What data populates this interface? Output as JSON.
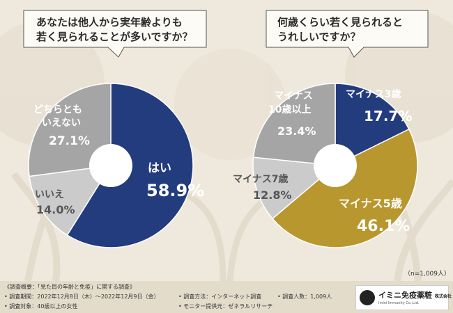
{
  "chart_data": [
    {
      "type": "pie",
      "title": "あなたは他人から実年齢よりも若く見られることが多いですか？",
      "title_lines": [
        "あなたは他人から実年齢よりも",
        "若く見られることが多いですか？"
      ],
      "slices": [
        {
          "label": "はい",
          "value": 58.9,
          "display": "58.9%",
          "color": "#233c7e"
        },
        {
          "label": "いいえ",
          "value": 14.0,
          "display": "14.0%",
          "color": "#cbcbcb"
        },
        {
          "label": "どちらともいえない",
          "value": 27.1,
          "display": "27.1%",
          "color": "#a5a5a5"
        }
      ]
    },
    {
      "type": "pie",
      "title": "何歳くらい若く見られるとうれしいですか？",
      "title_lines": [
        "何歳くらい若く見られると",
        "うれしいですか？"
      ],
      "slices": [
        {
          "label": "マイナス3歳",
          "value": 17.7,
          "display": "17.7%",
          "color": "#233c7e"
        },
        {
          "label": "マイナス5歳",
          "value": 46.1,
          "display": "46.1%",
          "color": "#b8972e"
        },
        {
          "label": "マイナス7歳",
          "value": 12.8,
          "display": "12.8%",
          "color": "#cbcbcb"
        },
        {
          "label": "マイナス10歳以上",
          "value": 23.4,
          "display": "23.4%",
          "color": "#a5a5a5"
        }
      ]
    }
  ],
  "labels": {
    "left_yes_label": "はい",
    "left_yes_value": "58.9%",
    "left_no_label": "いいえ",
    "left_no_value": "14.0%",
    "left_neutral_line1": "どちらとも",
    "left_neutral_line2": "いえない",
    "left_neutral_value": "27.1%",
    "right_m3_label": "マイナス3歳",
    "right_m3_value": "17.7%",
    "right_m5_label": "マイナス5歳",
    "right_m5_value": "46.1%",
    "right_m7_label": "マイナス7歳",
    "right_m7_value": "12.8%",
    "right_m10_line1": "マイナス",
    "right_m10_line2": "10歳以上",
    "right_m10_value": "23.4%"
  },
  "sample_note": "（n=1,009人）",
  "footer": {
    "overview": "《調査概要：「見た目の年齢と免疫」に関する調査》",
    "period": "• 調査期間：2022年12月8日（木）～2022年12月9日（金）",
    "method": "• 調査方法：インターネット調査",
    "count": "• 調査人数：1,009人",
    "target": "• 調査対象：40歳以上の女性",
    "provider": "• モニター提供元：ゼネラルリサーチ"
  },
  "logo": {
    "name": "イミニ免疫薬粧",
    "suffix": "株式会社",
    "sub": "Imini Immunity Co.,Ltd."
  }
}
